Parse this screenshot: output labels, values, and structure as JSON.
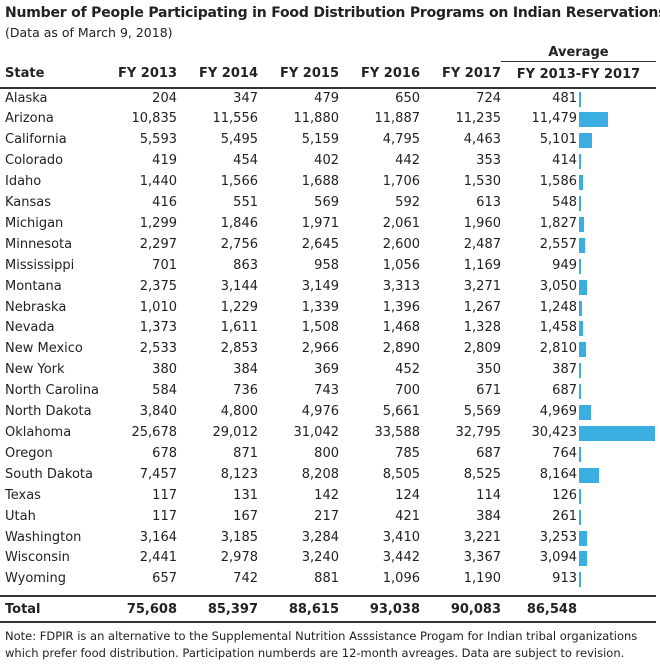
{
  "title": "Number of People Participating in Food Distribution Programs on Indian Reservations",
  "subtitle": "(Data as of March 9, 2018)",
  "columns": {
    "state": "State",
    "fy2013": "FY 2013",
    "fy2014": "FY 2014",
    "fy2015": "FY 2015",
    "fy2016": "FY 2016",
    "fy2017": "FY 2017",
    "average_top": "Average",
    "average_bottom": "FY 2013-FY 2017"
  },
  "colors": {
    "bar": "#3aaee0"
  },
  "rows": [
    {
      "state": "Alaska",
      "fy2013": "204",
      "fy2014": "347",
      "fy2015": "479",
      "fy2016": "650",
      "fy2017": "724",
      "avg": "481"
    },
    {
      "state": "Arizona",
      "fy2013": "10,835",
      "fy2014": "11,556",
      "fy2015": "11,880",
      "fy2016": "11,887",
      "fy2017": "11,235",
      "avg": "11,479"
    },
    {
      "state": "California",
      "fy2013": "5,593",
      "fy2014": "5,495",
      "fy2015": "5,159",
      "fy2016": "4,795",
      "fy2017": "4,463",
      "avg": "5,101"
    },
    {
      "state": "Colorado",
      "fy2013": "419",
      "fy2014": "454",
      "fy2015": "402",
      "fy2016": "442",
      "fy2017": "353",
      "avg": "414"
    },
    {
      "state": "Idaho",
      "fy2013": "1,440",
      "fy2014": "1,566",
      "fy2015": "1,688",
      "fy2016": "1,706",
      "fy2017": "1,530",
      "avg": "1,586"
    },
    {
      "state": "Kansas",
      "fy2013": "416",
      "fy2014": "551",
      "fy2015": "569",
      "fy2016": "592",
      "fy2017": "613",
      "avg": "548"
    },
    {
      "state": "Michigan",
      "fy2013": "1,299",
      "fy2014": "1,846",
      "fy2015": "1,971",
      "fy2016": "2,061",
      "fy2017": "1,960",
      "avg": "1,827"
    },
    {
      "state": "Minnesota",
      "fy2013": "2,297",
      "fy2014": "2,756",
      "fy2015": "2,645",
      "fy2016": "2,600",
      "fy2017": "2,487",
      "avg": "2,557"
    },
    {
      "state": "Mississippi",
      "fy2013": "701",
      "fy2014": "863",
      "fy2015": "958",
      "fy2016": "1,056",
      "fy2017": "1,169",
      "avg": "949"
    },
    {
      "state": "Montana",
      "fy2013": "2,375",
      "fy2014": "3,144",
      "fy2015": "3,149",
      "fy2016": "3,313",
      "fy2017": "3,271",
      "avg": "3,050"
    },
    {
      "state": "Nebraska",
      "fy2013": "1,010",
      "fy2014": "1,229",
      "fy2015": "1,339",
      "fy2016": "1,396",
      "fy2017": "1,267",
      "avg": "1,248"
    },
    {
      "state": "Nevada",
      "fy2013": "1,373",
      "fy2014": "1,611",
      "fy2015": "1,508",
      "fy2016": "1,468",
      "fy2017": "1,328",
      "avg": "1,458"
    },
    {
      "state": "New Mexico",
      "fy2013": "2,533",
      "fy2014": "2,853",
      "fy2015": "2,966",
      "fy2016": "2,890",
      "fy2017": "2,809",
      "avg": "2,810"
    },
    {
      "state": "New York",
      "fy2013": "380",
      "fy2014": "384",
      "fy2015": "369",
      "fy2016": "452",
      "fy2017": "350",
      "avg": "387"
    },
    {
      "state": "North Carolina",
      "fy2013": "584",
      "fy2014": "736",
      "fy2015": "743",
      "fy2016": "700",
      "fy2017": "671",
      "avg": "687"
    },
    {
      "state": "North Dakota",
      "fy2013": "3,840",
      "fy2014": "4,800",
      "fy2015": "4,976",
      "fy2016": "5,661",
      "fy2017": "5,569",
      "avg": "4,969"
    },
    {
      "state": "Oklahoma",
      "fy2013": "25,678",
      "fy2014": "29,012",
      "fy2015": "31,042",
      "fy2016": "33,588",
      "fy2017": "32,795",
      "avg": "30,423"
    },
    {
      "state": "Oregon",
      "fy2013": "678",
      "fy2014": "871",
      "fy2015": "800",
      "fy2016": "785",
      "fy2017": "687",
      "avg": "764"
    },
    {
      "state": "South Dakota",
      "fy2013": "7,457",
      "fy2014": "8,123",
      "fy2015": "8,208",
      "fy2016": "8,505",
      "fy2017": "8,525",
      "avg": "8,164"
    },
    {
      "state": "Texas",
      "fy2013": "117",
      "fy2014": "131",
      "fy2015": "142",
      "fy2016": "124",
      "fy2017": "114",
      "avg": "126"
    },
    {
      "state": "Utah",
      "fy2013": "117",
      "fy2014": "167",
      "fy2015": "217",
      "fy2016": "421",
      "fy2017": "384",
      "avg": "261"
    },
    {
      "state": "Washington",
      "fy2013": "3,164",
      "fy2014": "3,185",
      "fy2015": "3,284",
      "fy2016": "3,410",
      "fy2017": "3,221",
      "avg": "3,253"
    },
    {
      "state": "Wisconsin",
      "fy2013": "2,441",
      "fy2014": "2,978",
      "fy2015": "3,240",
      "fy2016": "3,442",
      "fy2017": "3,367",
      "avg": "3,094"
    },
    {
      "state": "Wyoming",
      "fy2013": "657",
      "fy2014": "742",
      "fy2015": "881",
      "fy2016": "1,096",
      "fy2017": "1,190",
      "avg": "913"
    }
  ],
  "total": {
    "state": "Total",
    "fy2013": "75,608",
    "fy2014": "85,397",
    "fy2015": "88,615",
    "fy2016": "93,038",
    "fy2017": "90,083",
    "avg": "86,548"
  },
  "note": "Note: FDPIR is an alternative to the Supplemental Nutrition Asssistance Progam for Indian tribal organizations which prefer food distribution. Participation numberds are 12-month avreages. Data are subject to revision.",
  "chart_data": {
    "type": "table",
    "title": "Number of People Participating in Food Distribution Programs on Indian Reservations",
    "subtitle": "(Data as of March 9, 2018)",
    "columns": [
      "State",
      "FY 2013",
      "FY 2014",
      "FY 2015",
      "FY 2016",
      "FY 2017",
      "Average FY 2013-FY 2017"
    ],
    "categories": [
      "Alaska",
      "Arizona",
      "California",
      "Colorado",
      "Idaho",
      "Kansas",
      "Michigan",
      "Minnesota",
      "Mississippi",
      "Montana",
      "Nebraska",
      "Nevada",
      "New Mexico",
      "New York",
      "North Carolina",
      "North Dakota",
      "Oklahoma",
      "Oregon",
      "South Dakota",
      "Texas",
      "Utah",
      "Washington",
      "Wisconsin",
      "Wyoming"
    ],
    "series": [
      {
        "name": "FY 2013",
        "values": [
          204,
          10835,
          5593,
          419,
          1440,
          416,
          1299,
          2297,
          701,
          2375,
          1010,
          1373,
          2533,
          380,
          584,
          3840,
          25678,
          678,
          7457,
          117,
          117,
          3164,
          2441,
          657
        ]
      },
      {
        "name": "FY 2014",
        "values": [
          347,
          11556,
          5495,
          454,
          1566,
          551,
          1846,
          2756,
          863,
          3144,
          1229,
          1611,
          2853,
          384,
          736,
          4800,
          29012,
          871,
          8123,
          131,
          167,
          3185,
          2978,
          742
        ]
      },
      {
        "name": "FY 2015",
        "values": [
          479,
          11880,
          5159,
          402,
          1688,
          569,
          1971,
          2645,
          958,
          3149,
          1339,
          1508,
          2966,
          369,
          743,
          4976,
          31042,
          800,
          8208,
          142,
          217,
          3284,
          3240,
          881
        ]
      },
      {
        "name": "FY 2016",
        "values": [
          650,
          11887,
          4795,
          442,
          1706,
          592,
          2061,
          2600,
          1056,
          3313,
          1396,
          1468,
          2890,
          452,
          700,
          5661,
          33588,
          785,
          8505,
          124,
          421,
          3410,
          3442,
          1096
        ]
      },
      {
        "name": "FY 2017",
        "values": [
          724,
          11235,
          4463,
          353,
          1530,
          613,
          1960,
          2487,
          1169,
          3271,
          1267,
          1328,
          2809,
          350,
          671,
          5569,
          32795,
          687,
          8525,
          114,
          384,
          3221,
          3367,
          1190
        ]
      },
      {
        "name": "Average FY 2013-FY 2017",
        "values": [
          481,
          11479,
          5101,
          414,
          1586,
          548,
          1827,
          2557,
          949,
          3050,
          1248,
          1458,
          2810,
          387,
          687,
          4969,
          30423,
          764,
          8164,
          126,
          261,
          3253,
          3094,
          913
        ]
      }
    ],
    "totals": [
      75608,
      85397,
      88615,
      93038,
      90083,
      86548
    ],
    "bar_series": "Average FY 2013-FY 2017",
    "bar_max": 30423
  }
}
